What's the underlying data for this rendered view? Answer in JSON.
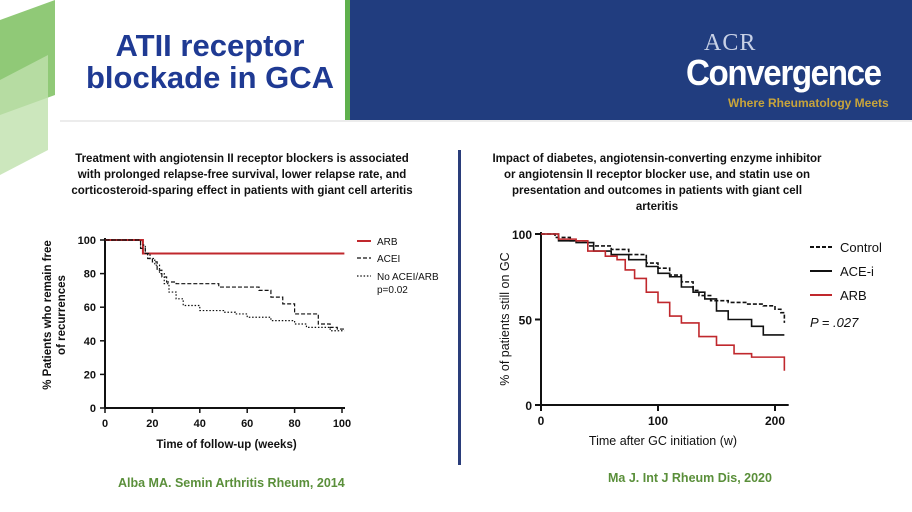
{
  "slide": {
    "title_line1": "ATII receptor",
    "title_line2": "blockade in GCA",
    "logo_acr": "ACR",
    "logo_convergence": "Convergence",
    "logo_tagline": "Where Rheumatology Meets",
    "colors": {
      "banner": "#213d7f",
      "accent_green": "#5fb04d",
      "title_blue": "#1f3a93",
      "cite_green": "#5a8f3a"
    }
  },
  "left": {
    "heading_lines": [
      "Treatment with angiotensin II receptor blockers is associated",
      "with prolonged relapse-free survival, lower relapse rate, and",
      "corticosteroid-sparing effect in patients with giant cell arteritis"
    ],
    "citation": "Alba MA. Semin Arthritis Rheum, 2014"
  },
  "right": {
    "heading_lines": [
      "Impact of diabetes, angiotensin-converting enzyme inhibitor",
      "or angiotensin II receptor blocker use, and statin use on",
      "presentation and outcomes in patients with giant cell arteritis"
    ],
    "citation": "Ma J. Int J Rheum Dis, 2020"
  },
  "chart_data": [
    {
      "type": "line",
      "title": "",
      "xlabel": "Time of follow-up (weeks)",
      "ylabel_lines": [
        "% Patients who remain free",
        "of recurrences"
      ],
      "xlim": [
        0,
        100
      ],
      "ylim": [
        0,
        100
      ],
      "xticks": [
        0,
        20,
        40,
        60,
        80,
        100
      ],
      "yticks": [
        0,
        20,
        40,
        60,
        80,
        100
      ],
      "annotation": "p=0.02",
      "series": [
        {
          "name": "ARB",
          "style": "solid",
          "color": "#c0282d",
          "x": [
            0,
            15,
            16,
            101
          ],
          "y": [
            100,
            100,
            92,
            92
          ]
        },
        {
          "name": "ACEI",
          "style": "dashed",
          "color": "#111111",
          "x": [
            0,
            14,
            15,
            17,
            18,
            20,
            22,
            24,
            26,
            30,
            40,
            48,
            60,
            65,
            70,
            75,
            80,
            90,
            95,
            98,
            101
          ],
          "y": [
            100,
            100,
            95,
            92,
            89,
            87,
            82,
            78,
            75,
            74,
            74,
            72,
            72,
            70,
            66,
            62,
            56,
            50,
            48,
            47,
            47
          ]
        },
        {
          "name": "No ACEI/ARB",
          "style": "dotted",
          "color": "#111111",
          "x": [
            0,
            13,
            15,
            17,
            19,
            21,
            23,
            25,
            27,
            30,
            33,
            40,
            50,
            55,
            60,
            70,
            75,
            80,
            85,
            90,
            95,
            98,
            101
          ],
          "y": [
            100,
            100,
            97,
            92,
            89,
            85,
            80,
            74,
            69,
            65,
            61,
            58,
            57,
            56,
            54,
            52,
            52,
            50,
            48,
            48,
            46,
            46,
            46
          ]
        }
      ]
    },
    {
      "type": "line",
      "title": "",
      "xlabel": "Time after GC initiation (w)",
      "ylabel": "% of patients still on GC",
      "xlim": [
        0,
        210
      ],
      "ylim": [
        0,
        100
      ],
      "xticks": [
        0,
        100,
        200
      ],
      "yticks": [
        0,
        50,
        100
      ],
      "annotation": "P = .027",
      "series": [
        {
          "name": "Control",
          "style": "dashed",
          "color": "#111111",
          "x": [
            0,
            12,
            25,
            40,
            60,
            75,
            90,
            100,
            110,
            120,
            130,
            135,
            145,
            160,
            175,
            190,
            200,
            205,
            208
          ],
          "y": [
            100,
            98,
            96,
            93,
            91,
            88,
            83,
            80,
            76,
            72,
            67,
            64,
            61,
            60,
            59,
            58,
            56,
            54,
            48
          ]
        },
        {
          "name": "ACE-i",
          "style": "solid",
          "color": "#111111",
          "x": [
            0,
            15,
            30,
            45,
            60,
            75,
            90,
            100,
            110,
            120,
            130,
            140,
            150,
            160,
            180,
            190,
            208
          ],
          "y": [
            100,
            96,
            95,
            90,
            88,
            85,
            81,
            77,
            75,
            69,
            66,
            62,
            55,
            50,
            46,
            41,
            41
          ]
        },
        {
          "name": "ARB",
          "style": "solid",
          "color": "#c0282d",
          "x": [
            0,
            15,
            30,
            40,
            55,
            65,
            72,
            80,
            90,
            100,
            110,
            120,
            135,
            150,
            165,
            180,
            200,
            208,
            208
          ],
          "y": [
            100,
            97,
            96,
            90,
            87,
            85,
            79,
            74,
            66,
            60,
            52,
            48,
            40,
            35,
            30,
            28,
            28,
            28,
            20
          ]
        }
      ]
    }
  ]
}
